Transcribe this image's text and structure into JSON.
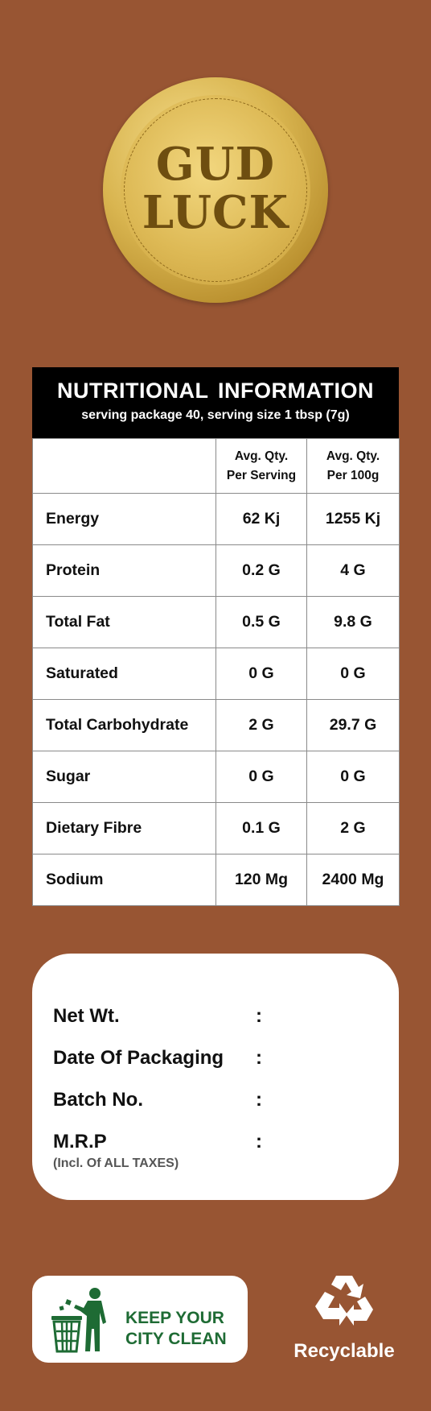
{
  "logo": {
    "line1": "GUD",
    "line2": "LUCK",
    "colors": {
      "gold_light": "#f4dc8a",
      "gold_dark": "#9c7424",
      "text": "#6e4e10"
    }
  },
  "background_color": "#985533",
  "nutrition": {
    "title": "NUTRITIONAL  INFORMATION",
    "subtitle": "serving package 40, serving size 1 tbsp (7g)",
    "header": {
      "col1": "",
      "col2_line1": "Avg. Qty.",
      "col2_line2": "Per Serving",
      "col3_line1": "Avg. Qty.",
      "col3_line2": "Per 100g"
    },
    "rows": [
      {
        "label": "Energy",
        "per_serving": "62 Kj",
        "per_100g": "1255 Kj"
      },
      {
        "label": "Protein",
        "per_serving": "0.2 G",
        "per_100g": "4 G"
      },
      {
        "label": "Total Fat",
        "per_serving": "0.5 G",
        "per_100g": "9.8 G"
      },
      {
        "label": "Saturated",
        "per_serving": "0 G",
        "per_100g": "0 G"
      },
      {
        "label": "Total Carbohydrate",
        "per_serving": "2 G",
        "per_100g": "29.7 G"
      },
      {
        "label": "Sugar",
        "per_serving": "0 G",
        "per_100g": "0 G"
      },
      {
        "label": "Dietary Fibre",
        "per_serving": "0.1 G",
        "per_100g": "2 G"
      },
      {
        "label": "Sodium",
        "per_serving": "120 Mg",
        "per_100g": "2400 Mg"
      }
    ]
  },
  "info": {
    "net_wt": "Net Wt.",
    "date_of_packaging": "Date Of Packaging",
    "batch_no": "Batch No.",
    "mrp": "M.R.P",
    "mrp_note": "(Incl. Of ALL TAXES)",
    "colon": ":"
  },
  "badges": {
    "clean_line1": "KEEP YOUR",
    "clean_line2": "CITY CLEAN",
    "clean_icon": "person-trash-bin-icon",
    "clean_color": "#1e6b34",
    "recyclable": "Recyclable",
    "recycle_icon": "recycle-icon"
  }
}
